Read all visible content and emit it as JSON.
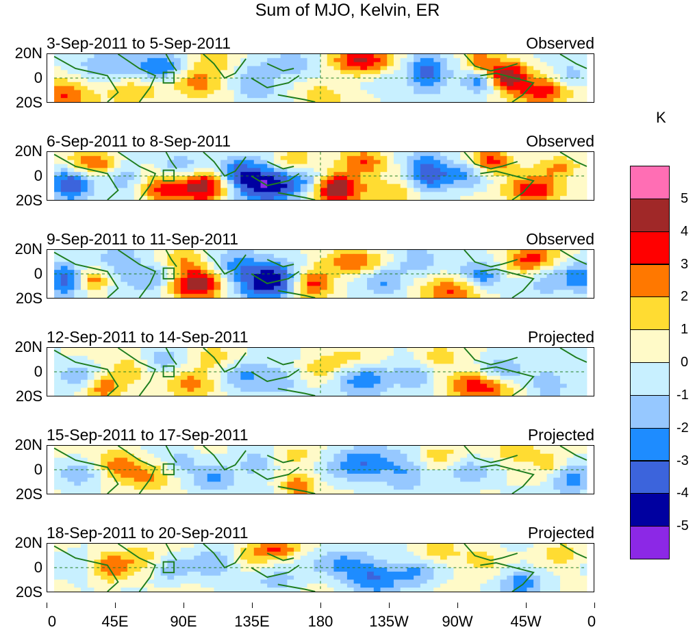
{
  "title": "Sum of MJO, Kelvin, ER",
  "panels": [
    {
      "range": "3-Sep-2011 to 5-Sep-2011",
      "kind": "Observed"
    },
    {
      "range": "6-Sep-2011 to 8-Sep-2011",
      "kind": "Observed"
    },
    {
      "range": "9-Sep-2011 to 11-Sep-2011",
      "kind": "Observed"
    },
    {
      "range": "12-Sep-2011 to 14-Sep-2011",
      "kind": "Projected"
    },
    {
      "range": "15-Sep-2011 to 17-Sep-2011",
      "kind": "Projected"
    },
    {
      "range": "18-Sep-2011 to 20-Sep-2011",
      "kind": "Projected"
    }
  ],
  "lat_labels": [
    "20N",
    "0",
    "20S"
  ],
  "lon_labels": [
    "0",
    "45E",
    "90E",
    "135E",
    "180",
    "135W",
    "90W",
    "45W",
    "0"
  ],
  "colorbar": {
    "unit": "K",
    "labels": [
      "5",
      "4",
      "3",
      "2",
      "1",
      "0",
      "-1",
      "-2",
      "-3",
      "-4",
      "-5"
    ],
    "colors": [
      "#ff6eb4",
      "#a02828",
      "#ff0000",
      "#ff7800",
      "#ffdc32",
      "#fffac8",
      "#c8f0ff",
      "#96c8ff",
      "#1e8cff",
      "#3c64dc",
      "#0000a0",
      "#8c28e6"
    ]
  },
  "field_palette": {
    "coast": "#1e7d1e",
    "grid": "#1e7d1e"
  }
}
